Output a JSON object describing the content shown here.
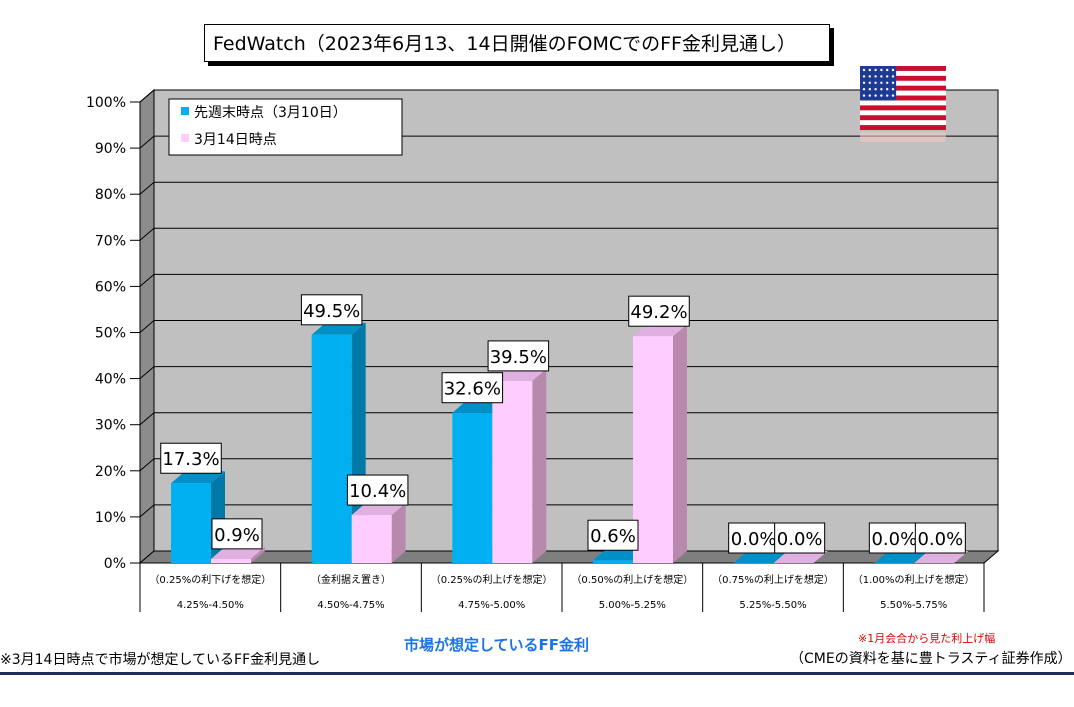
{
  "title": "FedWatch（2023年6月13、14日開催のFOMCでのFF金利見通し）",
  "footer": {
    "left": "※3月14日時点で市場が想定しているFF金利見通し",
    "center": "市場が想定しているFF金利",
    "note": "※1月会合から見た利上げ幅",
    "source": "（CMEの資料を基に豊トラスティ証券作成）"
  },
  "flag": "us-flag-icon",
  "colors": {
    "series1": "#00b0f0",
    "series1_side": "#0078a8",
    "series2": "#ffccff",
    "series2_side": "#b889ad",
    "plot_bg": "#c0c0c0",
    "floor": "#7f7f7f"
  },
  "chart_data": {
    "type": "bar",
    "ylim": [
      0,
      100
    ],
    "yticks": [
      "0%",
      "10%",
      "20%",
      "30%",
      "40%",
      "50%",
      "60%",
      "70%",
      "80%",
      "90%",
      "100%"
    ],
    "categories": [
      {
        "note": "（0.25%の利下げを想定）",
        "range": "4.25%-4.50%"
      },
      {
        "note": "（金利据え置き）",
        "range": "4.50%-4.75%"
      },
      {
        "note": "（0.25%の利上げを想定）",
        "range": "4.75%-5.00%"
      },
      {
        "note": "（0.50%の利上げを想定）",
        "range": "5.00%-5.25%"
      },
      {
        "note": "（0.75%の利上げを想定）",
        "range": "5.25%-5.50%"
      },
      {
        "note": "（1.00%の利上げを想定）",
        "range": "5.50%-5.75%"
      }
    ],
    "series": [
      {
        "name": "先週末時点（3月10日）",
        "values": [
          17.3,
          49.5,
          32.6,
          0.6,
          0.0,
          0.0
        ],
        "labels": [
          "17.3%",
          "49.5%",
          "32.6%",
          "0.6%",
          "0.0%",
          "0.0%"
        ]
      },
      {
        "name": "3月14日時点",
        "values": [
          0.9,
          10.4,
          39.5,
          49.2,
          0.0,
          0.0
        ],
        "labels": [
          "0.9%",
          "10.4%",
          "39.5%",
          "49.2%",
          "0.0%",
          "0.0%"
        ]
      }
    ],
    "legend_position": "top-left",
    "grid": true
  }
}
